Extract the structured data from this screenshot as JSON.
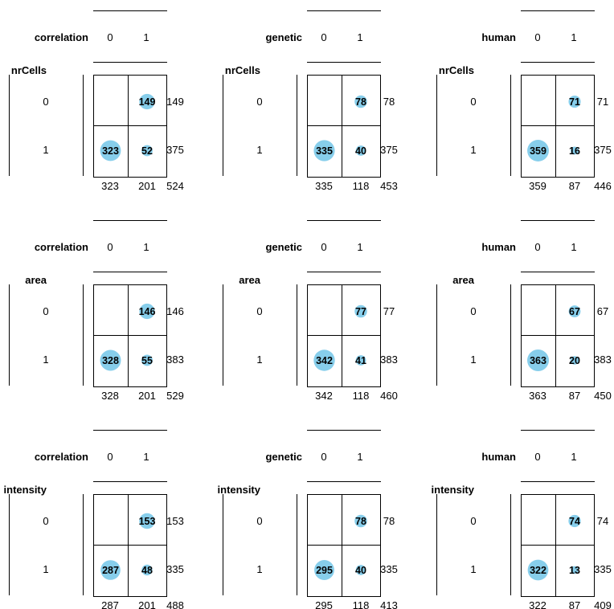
{
  "chart_data": [
    {
      "type": "table",
      "col_var": "correlation",
      "row_var": "nrCells",
      "col_levels": [
        "0",
        "1"
      ],
      "row_levels": [
        "0",
        "1"
      ],
      "cells": [
        [
          null,
          149
        ],
        [
          323,
          52
        ]
      ],
      "row_totals": [
        149,
        375
      ],
      "col_totals": [
        323,
        201
      ],
      "total": 524
    },
    {
      "type": "table",
      "col_var": "genetic",
      "row_var": "nrCells",
      "col_levels": [
        "0",
        "1"
      ],
      "row_levels": [
        "0",
        "1"
      ],
      "cells": [
        [
          null,
          78
        ],
        [
          335,
          40
        ]
      ],
      "row_totals": [
        78,
        375
      ],
      "col_totals": [
        335,
        118
      ],
      "total": 453
    },
    {
      "type": "table",
      "col_var": "human",
      "row_var": "nrCells",
      "col_levels": [
        "0",
        "1"
      ],
      "row_levels": [
        "0",
        "1"
      ],
      "cells": [
        [
          null,
          71
        ],
        [
          359,
          16
        ]
      ],
      "row_totals": [
        71,
        375
      ],
      "col_totals": [
        359,
        87
      ],
      "total": 446
    },
    {
      "type": "table",
      "col_var": "correlation",
      "row_var": "area",
      "col_levels": [
        "0",
        "1"
      ],
      "row_levels": [
        "0",
        "1"
      ],
      "cells": [
        [
          null,
          146
        ],
        [
          328,
          55
        ]
      ],
      "row_totals": [
        146,
        383
      ],
      "col_totals": [
        328,
        201
      ],
      "total": 529
    },
    {
      "type": "table",
      "col_var": "genetic",
      "row_var": "area",
      "col_levels": [
        "0",
        "1"
      ],
      "row_levels": [
        "0",
        "1"
      ],
      "cells": [
        [
          null,
          77
        ],
        [
          342,
          41
        ]
      ],
      "row_totals": [
        77,
        383
      ],
      "col_totals": [
        342,
        118
      ],
      "total": 460
    },
    {
      "type": "table",
      "col_var": "human",
      "row_var": "area",
      "col_levels": [
        "0",
        "1"
      ],
      "row_levels": [
        "0",
        "1"
      ],
      "cells": [
        [
          null,
          67
        ],
        [
          363,
          20
        ]
      ],
      "row_totals": [
        67,
        383
      ],
      "col_totals": [
        363,
        87
      ],
      "total": 450
    },
    {
      "type": "table",
      "col_var": "correlation",
      "row_var": "intensity",
      "col_levels": [
        "0",
        "1"
      ],
      "row_levels": [
        "0",
        "1"
      ],
      "cells": [
        [
          null,
          153
        ],
        [
          287,
          48
        ]
      ],
      "row_totals": [
        153,
        335
      ],
      "col_totals": [
        287,
        201
      ],
      "total": 488
    },
    {
      "type": "table",
      "col_var": "genetic",
      "row_var": "intensity",
      "col_levels": [
        "0",
        "1"
      ],
      "row_levels": [
        "0",
        "1"
      ],
      "cells": [
        [
          null,
          78
        ],
        [
          295,
          40
        ]
      ],
      "row_totals": [
        78,
        335
      ],
      "col_totals": [
        295,
        118
      ],
      "total": 413
    },
    {
      "type": "table",
      "col_var": "human",
      "row_var": "intensity",
      "col_levels": [
        "0",
        "1"
      ],
      "row_levels": [
        "0",
        "1"
      ],
      "cells": [
        [
          null,
          74
        ],
        [
          322,
          13
        ]
      ],
      "row_totals": [
        74,
        335
      ],
      "col_totals": [
        322,
        87
      ],
      "total": 409
    }
  ],
  "colors": {
    "bubble": "#87ceeb",
    "line": "#000000",
    "text": "#000000"
  }
}
